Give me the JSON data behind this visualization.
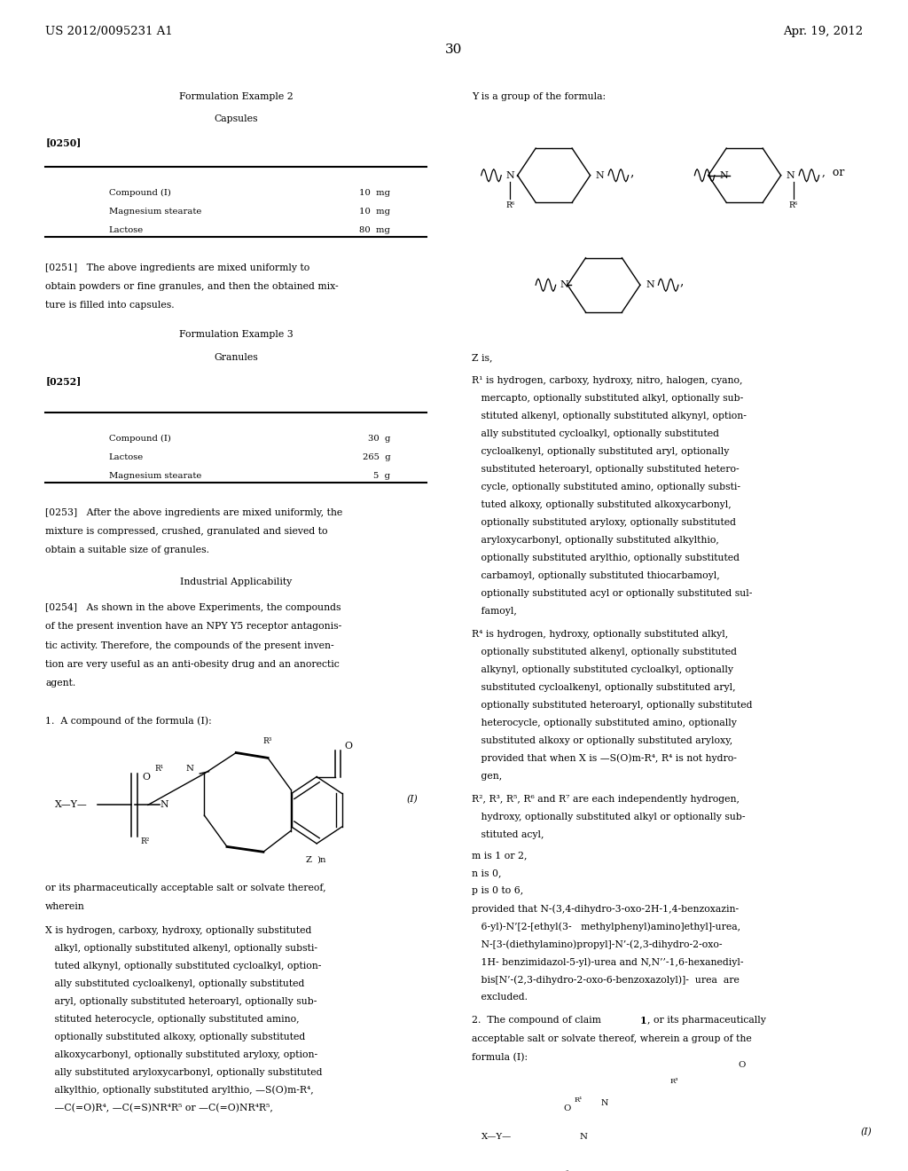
{
  "bg_color": "#ffffff",
  "header_left": "US 2012/0095231 A1",
  "header_right": "Apr. 19, 2012",
  "page_number": "30"
}
